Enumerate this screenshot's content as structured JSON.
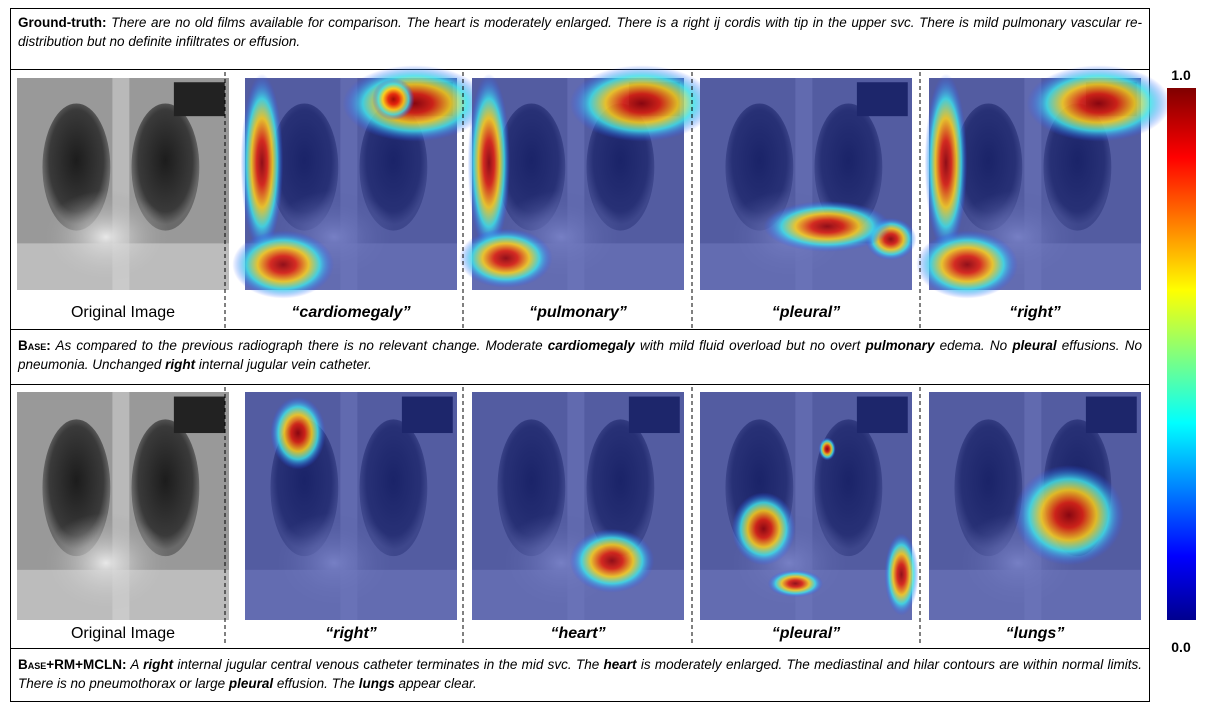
{
  "ground_truth": {
    "label": "Ground-truth:",
    "segments": [
      {
        "text": "There are no old films available for comparison. The heart is moderately enlarged. There is a right ij cordis with tip in the upper svc. There is mild pulmonary vascular re-distribution but no definite infiltrates or effusion.",
        "bold": false
      }
    ]
  },
  "row1": {
    "captions": [
      "Original Image",
      "“cardiomegaly”",
      "“pulmonary”",
      "“pleural”",
      "“right”"
    ]
  },
  "base": {
    "label": "Base:",
    "segments": [
      {
        "text": "As compared to the previous radiograph there is no relevant change. Moderate ",
        "bold": false
      },
      {
        "text": "cardiomegaly",
        "bold": true
      },
      {
        "text": " with mild fluid overload but no overt ",
        "bold": false
      },
      {
        "text": "pulmonary",
        "bold": true
      },
      {
        "text": " edema. No ",
        "bold": false
      },
      {
        "text": "pleural",
        "bold": true
      },
      {
        "text": " effusions. No pneumonia. Unchanged ",
        "bold": false
      },
      {
        "text": "right",
        "bold": true
      },
      {
        "text": " internal jugular vein catheter.",
        "bold": false
      }
    ]
  },
  "row2": {
    "captions": [
      "Original Image",
      "“right”",
      "“heart”",
      "“pleural”",
      "“lungs”"
    ]
  },
  "base_rm_mcln": {
    "label": "Base+RM+MCLN:",
    "segments": [
      {
        "text": "A ",
        "bold": false
      },
      {
        "text": "right",
        "bold": true
      },
      {
        "text": " internal jugular central venous catheter terminates in the mid svc. The ",
        "bold": false
      },
      {
        "text": "heart",
        "bold": true
      },
      {
        "text": " is moderately enlarged. The mediastinal and hilar contours are within normal limits. There is no pneumothorax or large ",
        "bold": false
      },
      {
        "text": "pleural",
        "bold": true
      },
      {
        "text": " effusion. The ",
        "bold": false
      },
      {
        "text": "lungs",
        "bold": true
      },
      {
        "text": " appear clear.",
        "bold": false
      }
    ]
  },
  "colorbar": {
    "ticks": [
      {
        "value": 1,
        "label": "1.0"
      },
      {
        "value": 0,
        "label": "0.0"
      }
    ]
  }
}
